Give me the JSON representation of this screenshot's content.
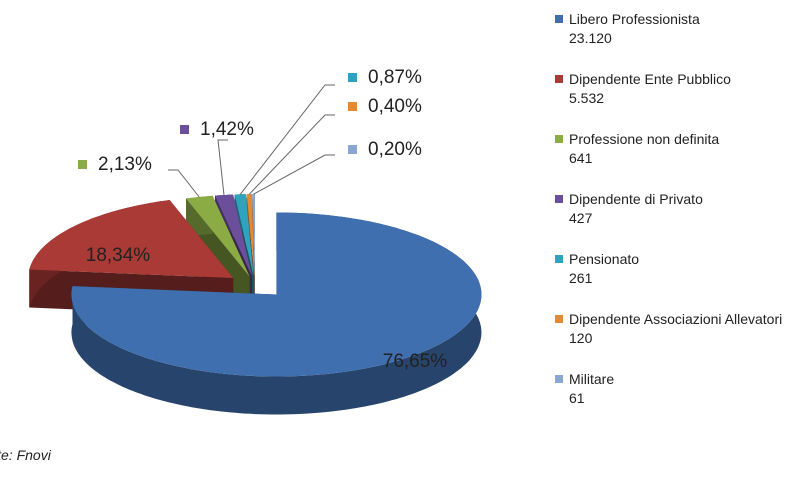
{
  "chart_data": {
    "type": "pie3d",
    "categories": [
      "Libero Professionista",
      "Dipendente Ente Pubblico",
      "Professione non definita",
      "Dipendente di Privato",
      "Pensionato",
      "Dipendente Associazioni Allevatori",
      "Militare"
    ],
    "values": [
      76.65,
      18.34,
      2.13,
      1.42,
      0.87,
      0.4,
      0.2
    ],
    "value_labels": [
      "76,65%",
      "18,34%",
      "2,13%",
      "1,42%",
      "0,87%",
      "0,40%",
      "0,20%"
    ],
    "count_labels": [
      "23.120",
      "5.532",
      "641",
      "427",
      "261",
      "120",
      "61"
    ],
    "colors": [
      "#3f6fae",
      "#a93a36",
      "#8bab45",
      "#6c4f9a",
      "#2fa3bd",
      "#e38a32",
      "#8aa7d4"
    ],
    "source": "Fonte: Fnovi",
    "legend": "right"
  }
}
